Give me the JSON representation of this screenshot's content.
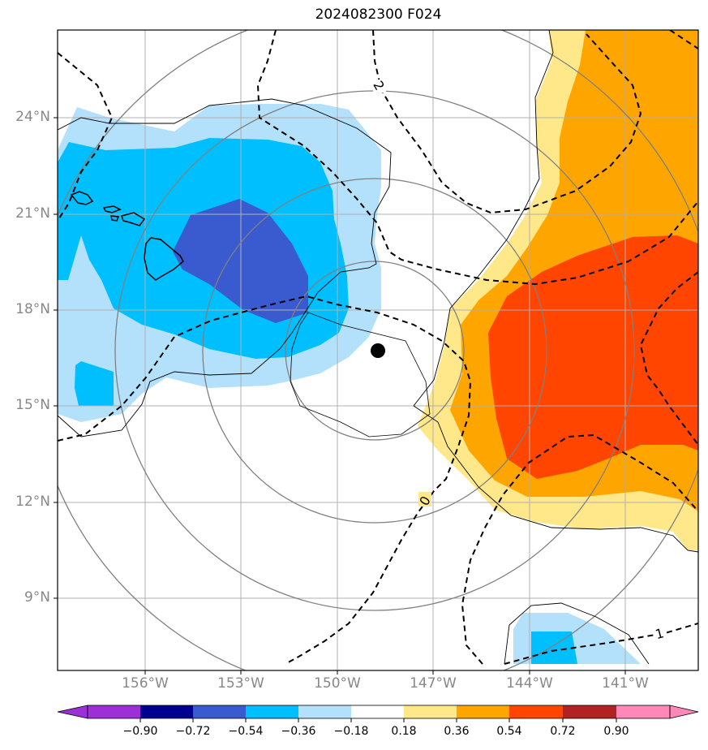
{
  "title": "2024082300 F024",
  "lat_labels": [
    "24°N",
    "21°N",
    "18°N",
    "15°N",
    "12°N",
    "9°N"
  ],
  "lon_labels": [
    "156°W",
    "153°W",
    "150°W",
    "147°W",
    "144°W",
    "141°W"
  ],
  "contour_labels": [
    "2",
    "0",
    "1"
  ],
  "colorbar": {
    "tick_labels": [
      "−0.90",
      "−0.72",
      "−0.54",
      "−0.36",
      "−0.18",
      "0.18",
      "0.36",
      "0.54",
      "0.72",
      "0.90"
    ],
    "colors": [
      "#9b30d9",
      "#000090",
      "#3a5bd0",
      "#00bfff",
      "#b3e0fb",
      "#ffffff",
      "#ffe88a",
      "#ffa500",
      "#ff4500",
      "#b22222",
      "#ff88b8"
    ]
  },
  "colors": {
    "neg_light": "#b3e0fb",
    "neg_mid": "#00bfff",
    "neg_dark": "#3a5bd0",
    "pos_light": "#ffe88a",
    "pos_mid": "#ffa500",
    "pos_dark": "#ff4500",
    "grid": "#b0b0b0",
    "range_rings": "#808080",
    "contour": "#000000"
  },
  "map_extent": {
    "lon_min": -158.7,
    "lon_max": -138.7,
    "lat_min": 6.8,
    "lat_max": 26.7
  },
  "storm_center": {
    "lon": -148.7,
    "lat": 16.7
  }
}
